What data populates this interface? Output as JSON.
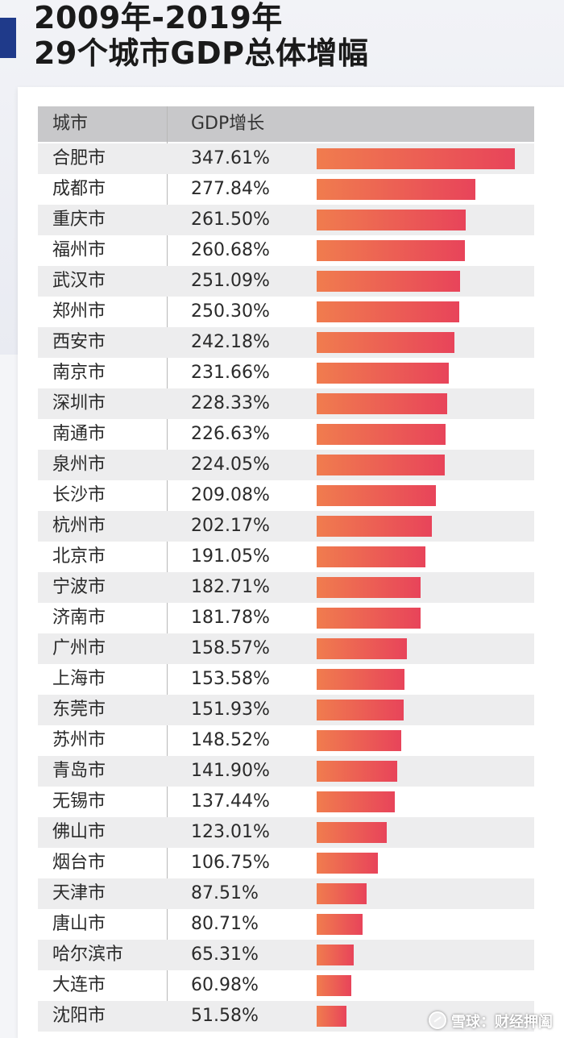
{
  "title": {
    "line1": "2009年-2019年",
    "line2": "29个城市GDP总体增幅"
  },
  "table_header": {
    "city": "城市",
    "growth": "GDP增长"
  },
  "chart_data": {
    "type": "bar",
    "orientation": "horizontal",
    "title": "2009年-2019年 29个城市GDP总体增幅",
    "xlabel": "GDP增长",
    "ylabel": "城市",
    "unit": "%",
    "categories": [
      "合肥市",
      "成都市",
      "重庆市",
      "福州市",
      "武汉市",
      "郑州市",
      "西安市",
      "南京市",
      "深圳市",
      "南通市",
      "泉州市",
      "长沙市",
      "杭州市",
      "北京市",
      "宁波市",
      "济南市",
      "广州市",
      "上海市",
      "东莞市",
      "苏州市",
      "青岛市",
      "无锡市",
      "佛山市",
      "烟台市",
      "天津市",
      "唐山市",
      "哈尔滨市",
      "大连市",
      "沈阳市"
    ],
    "values": [
      347.61,
      277.84,
      261.5,
      260.68,
      251.09,
      250.3,
      242.18,
      231.66,
      228.33,
      226.63,
      224.05,
      209.08,
      202.17,
      191.05,
      182.71,
      181.78,
      158.57,
      153.58,
      151.93,
      148.52,
      141.9,
      137.44,
      123.01,
      106.75,
      87.51,
      80.71,
      65.31,
      60.98,
      51.58
    ],
    "labels": [
      "347.61%",
      "277.84%",
      "261.50%",
      "260.68%",
      "251.09%",
      "250.30%",
      "242.18%",
      "231.66%",
      "228.33%",
      "226.63%",
      "224.05%",
      "209.08%",
      "202.17%",
      "191.05%",
      "182.71%",
      "181.78%",
      "158.57%",
      "153.58%",
      "151.93%",
      "148.52%",
      "141.90%",
      "137.44%",
      "123.01%",
      "106.75%",
      "87.51%",
      "80.71%",
      "65.31%",
      "60.98%",
      "51.58%"
    ],
    "colors": {
      "bar_start": "#f07c4e",
      "bar_end": "#e8445a",
      "header_bg": "#c8c8ca",
      "alt_row_bg": "#ededee",
      "accent": "#1f3a8a"
    },
    "grid": false,
    "legend": "none"
  },
  "watermark": {
    "text": "雪球：财经押阖"
  }
}
